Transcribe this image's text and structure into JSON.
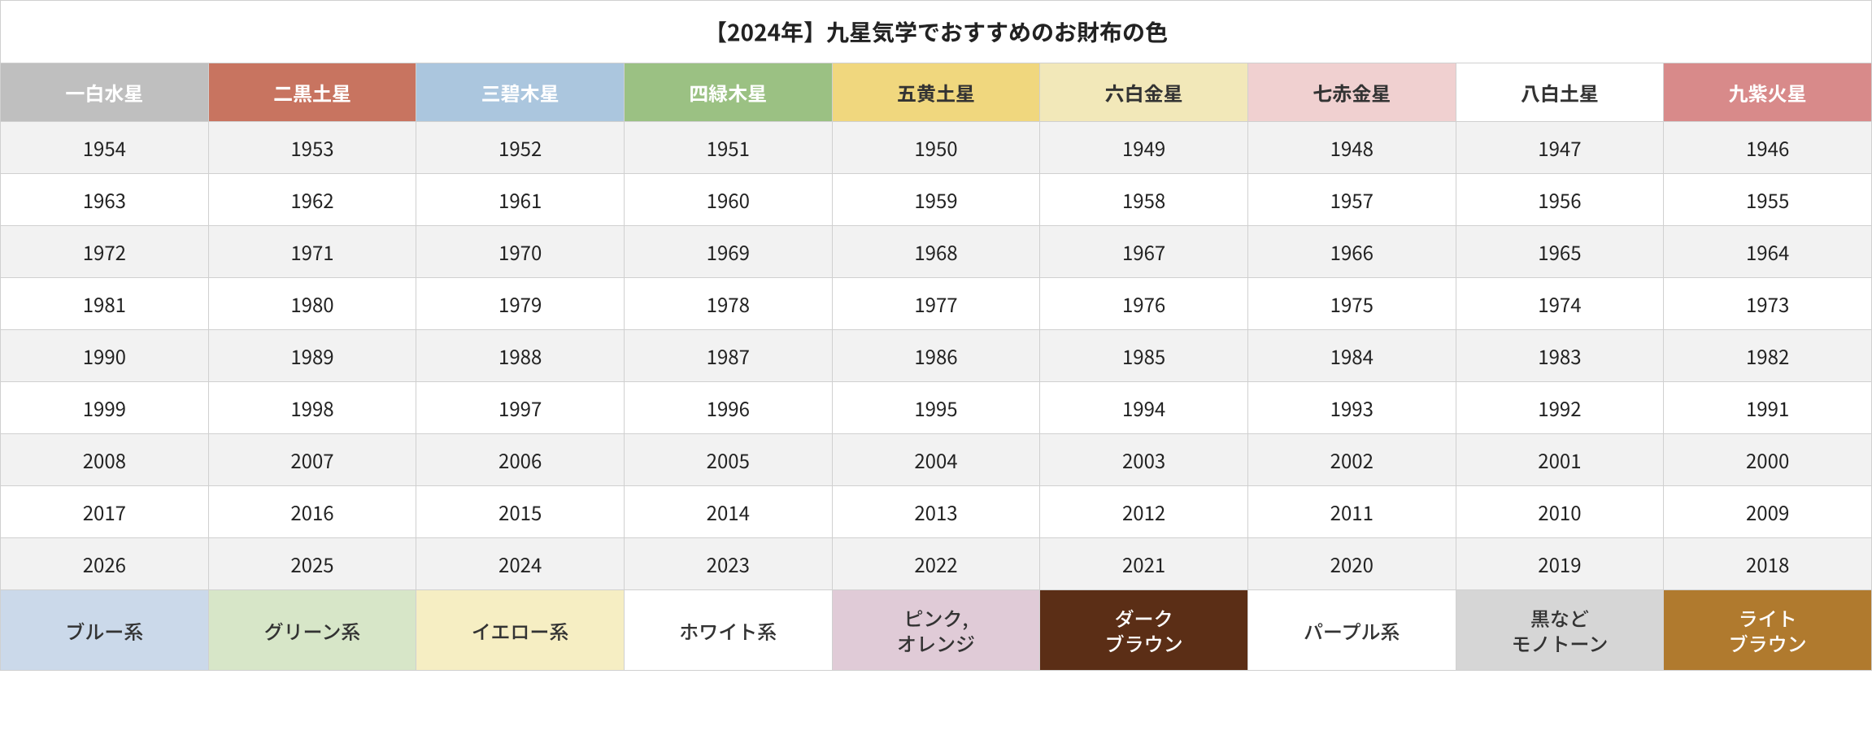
{
  "title": "【2024年】九星気学でおすすめのお財布の色",
  "stars": [
    {
      "name": "一白水星",
      "bg": "#bfbfbf",
      "fg": "#ffffff"
    },
    {
      "name": "二黒土星",
      "bg": "#c87460",
      "fg": "#ffffff"
    },
    {
      "name": "三碧木星",
      "bg": "#abc6de",
      "fg": "#ffffff"
    },
    {
      "name": "四緑木星",
      "bg": "#9bc183",
      "fg": "#ffffff"
    },
    {
      "name": "五黄土星",
      "bg": "#f0d77e",
      "fg": "#333333"
    },
    {
      "name": "六白金星",
      "bg": "#f2e8b9",
      "fg": "#333333"
    },
    {
      "name": "七赤金星",
      "bg": "#f0d0d0",
      "fg": "#333333"
    },
    {
      "name": "八白土星",
      "bg": "#ffffff",
      "fg": "#333333"
    },
    {
      "name": "九紫火星",
      "bg": "#d88a8a",
      "fg": "#ffffff"
    }
  ],
  "years": [
    [
      1954,
      1953,
      1952,
      1951,
      1950,
      1949,
      1948,
      1947,
      1946
    ],
    [
      1963,
      1962,
      1961,
      1960,
      1959,
      1958,
      1957,
      1956,
      1955
    ],
    [
      1972,
      1971,
      1970,
      1969,
      1968,
      1967,
      1966,
      1965,
      1964
    ],
    [
      1981,
      1980,
      1979,
      1978,
      1977,
      1976,
      1975,
      1974,
      1973
    ],
    [
      1990,
      1989,
      1988,
      1987,
      1986,
      1985,
      1984,
      1983,
      1982
    ],
    [
      1999,
      1998,
      1997,
      1996,
      1995,
      1994,
      1993,
      1992,
      1991
    ],
    [
      2008,
      2007,
      2006,
      2005,
      2004,
      2003,
      2002,
      2001,
      2000
    ],
    [
      2017,
      2016,
      2015,
      2014,
      2013,
      2012,
      2011,
      2010,
      2009
    ],
    [
      2026,
      2025,
      2024,
      2023,
      2022,
      2021,
      2020,
      2019,
      2018
    ]
  ],
  "colors": [
    {
      "label": "ブルー系",
      "bg": "#cbd9ea",
      "fg": "#333333"
    },
    {
      "label": "グリーン系",
      "bg": "#d7e6c8",
      "fg": "#333333"
    },
    {
      "label": "イエロー系",
      "bg": "#f6eec3",
      "fg": "#333333"
    },
    {
      "label": "ホワイト系",
      "bg": "#ffffff",
      "fg": "#333333"
    },
    {
      "label": "ピンク,\nオレンジ",
      "bg": "#e0cbd7",
      "fg": "#333333"
    },
    {
      "label": "ダーク\nブラウン",
      "bg": "#5b2e16",
      "fg": "#ffffff"
    },
    {
      "label": "パープル系",
      "bg": "#ffffff",
      "fg": "#333333"
    },
    {
      "label": "黒など\nモノトーン",
      "bg": "#d6d6d6",
      "fg": "#333333"
    },
    {
      "label": "ライト\nブラウン",
      "bg": "#b07a2e",
      "fg": "#ffffff"
    }
  ]
}
